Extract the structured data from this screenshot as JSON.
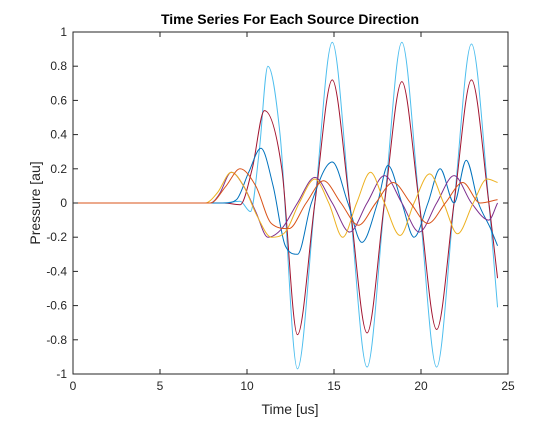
{
  "chart_data": {
    "type": "line",
    "title": "Time Series For Each Source Direction",
    "xlabel": "Time [us]",
    "ylabel": "Pressure [au]",
    "xlim": [
      0,
      25
    ],
    "ylim": [
      -1,
      1
    ],
    "xticks": [
      0,
      5,
      10,
      15,
      20,
      25
    ],
    "xtick_labels": [
      "0",
      "5",
      "10",
      "15",
      "20",
      "25"
    ],
    "yticks": [
      -1,
      -0.8,
      -0.6,
      -0.4,
      -0.2,
      0,
      0.2,
      0.4,
      0.6,
      0.8,
      1
    ],
    "ytick_labels": [
      "-1",
      "-0.8",
      "-0.6",
      "-0.4",
      "-0.2",
      "0",
      "0.2",
      "0.4",
      "0.6",
      "0.8",
      "1"
    ],
    "grid": false,
    "legend": "none",
    "series": [
      {
        "color": "#4dbeee",
        "x": [
          0,
          8.6,
          9.6,
          10.2,
          10.7,
          11.2,
          11.9,
          12.9,
          13.9,
          14.9,
          15.9,
          16.9,
          17.9,
          18.9,
          19.9,
          20.9,
          21.9,
          22.9,
          23.9,
          24.4
        ],
        "y": [
          0,
          0,
          0.01,
          -0.05,
          0.3,
          0.8,
          0.4,
          -0.97,
          0,
          0.94,
          0,
          -0.96,
          0,
          0.94,
          0,
          -0.96,
          0,
          0.93,
          0,
          -0.61
        ]
      },
      {
        "color": "#a2142f",
        "x": [
          0,
          8.7,
          9.6,
          10.3,
          11.0,
          12.0,
          12.9,
          13.9,
          14.9,
          15.9,
          16.9,
          17.9,
          18.9,
          19.9,
          20.9,
          21.9,
          22.9,
          23.9,
          24.4
        ],
        "y": [
          0,
          0,
          -0.01,
          0.2,
          0.54,
          0.2,
          -0.77,
          0,
          0.72,
          0,
          -0.76,
          0,
          0.71,
          0,
          -0.74,
          0,
          0.72,
          0,
          -0.44
        ]
      },
      {
        "color": "#0072bd",
        "x": [
          0,
          8.7,
          9.4,
          10.1,
          10.8,
          11.5,
          12.2,
          12.9,
          13.7,
          14.9,
          15.8,
          16.6,
          17.5,
          18.1,
          18.9,
          19.6,
          20.4,
          21.1,
          21.9,
          22.6,
          23.3,
          24.0,
          24.4
        ],
        "y": [
          0,
          0,
          0.02,
          0.18,
          0.32,
          0.1,
          -0.25,
          -0.3,
          0,
          0.24,
          0,
          -0.23,
          0,
          0.22,
          0,
          -0.2,
          0,
          0.2,
          0,
          0.25,
          0,
          -0.15,
          -0.25
        ]
      },
      {
        "color": "#7e2f8e",
        "x": [
          0,
          7.9,
          8.4,
          9.1,
          9.8,
          10.5,
          11.2,
          12.0,
          12.9,
          13.9,
          14.9,
          15.9,
          16.9,
          17.9,
          18.9,
          19.9,
          20.9,
          21.9,
          22.9,
          23.9,
          24.4
        ],
        "y": [
          0,
          0,
          0.05,
          0.18,
          0.1,
          -0.05,
          -0.2,
          -0.15,
          0,
          0.15,
          0,
          -0.17,
          0,
          0.16,
          0,
          -0.17,
          0,
          0.16,
          0,
          -0.1,
          0
        ]
      },
      {
        "color": "#edb120",
        "x": [
          0,
          7.6,
          8.3,
          9.1,
          9.8,
          10.6,
          11.4,
          12.2,
          13.0,
          13.9,
          14.7,
          15.5,
          16.3,
          17.1,
          17.9,
          18.8,
          19.6,
          20.5,
          21.3,
          22.1,
          23.0,
          23.8,
          24.4
        ],
        "y": [
          0,
          0,
          0.06,
          0.18,
          0.1,
          -0.08,
          -0.2,
          -0.17,
          0,
          0.14,
          0,
          -0.2,
          0,
          0.18,
          0,
          -0.19,
          0,
          0.17,
          0,
          -0.18,
          0,
          0.14,
          0.12
        ]
      },
      {
        "color": "#d95319",
        "x": [
          0,
          7.9,
          8.8,
          9.6,
          10.5,
          11.4,
          12.4,
          13.4,
          14.4,
          15.4,
          16.4,
          17.4,
          18.4,
          19.4,
          20.4,
          21.4,
          22.4,
          23.4,
          24.4
        ],
        "y": [
          0,
          0,
          0.1,
          0.2,
          0.1,
          -0.12,
          -0.15,
          0,
          0.13,
          0,
          -0.13,
          0,
          0.12,
          0,
          -0.12,
          0,
          0.12,
          0,
          0.02
        ]
      }
    ]
  }
}
